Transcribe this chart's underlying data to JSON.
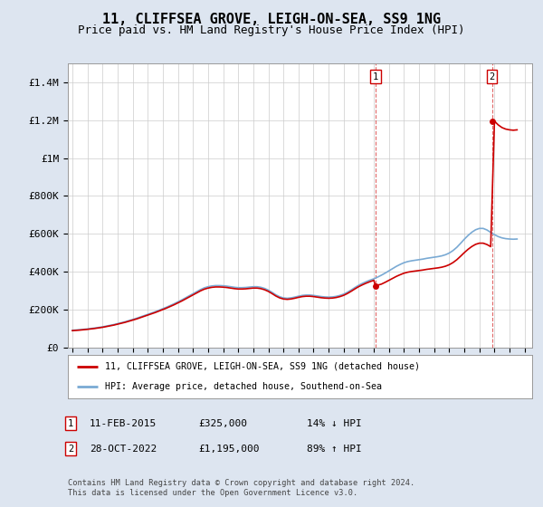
{
  "title": "11, CLIFFSEA GROVE, LEIGH-ON-SEA, SS9 1NG",
  "subtitle": "Price paid vs. HM Land Registry's House Price Index (HPI)",
  "title_fontsize": 11,
  "subtitle_fontsize": 9,
  "ylabel_ticks": [
    "£0",
    "£200K",
    "£400K",
    "£600K",
    "£800K",
    "£1M",
    "£1.2M",
    "£1.4M"
  ],
  "ytick_values": [
    0,
    200000,
    400000,
    600000,
    800000,
    1000000,
    1200000,
    1400000
  ],
  "ylim": [
    0,
    1500000
  ],
  "xlim_start": 1994.7,
  "xlim_end": 2025.5,
  "xticks": [
    1995,
    1996,
    1997,
    1998,
    1999,
    2000,
    2001,
    2002,
    2003,
    2004,
    2005,
    2006,
    2007,
    2008,
    2009,
    2010,
    2011,
    2012,
    2013,
    2014,
    2015,
    2016,
    2017,
    2018,
    2019,
    2020,
    2021,
    2022,
    2023,
    2024,
    2025
  ],
  "hpi_color": "#7aaad4",
  "price_color": "#cc0000",
  "background_color": "#dde5f0",
  "plot_bg_color": "#ffffff",
  "grid_color": "#cccccc",
  "sale1_x": 2015.1,
  "sale1_y": 325000,
  "sale2_x": 2022.83,
  "sale2_y": 1195000,
  "legend_line1": "11, CLIFFSEA GROVE, LEIGH-ON-SEA, SS9 1NG (detached house)",
  "legend_line2": "HPI: Average price, detached house, Southend-on-Sea",
  "footer": "Contains HM Land Registry data © Crown copyright and database right 2024.\nThis data is licensed under the Open Government Licence v3.0.",
  "hpi_x": [
    1995.0,
    1995.25,
    1995.5,
    1995.75,
    1996.0,
    1996.25,
    1996.5,
    1996.75,
    1997.0,
    1997.25,
    1997.5,
    1997.75,
    1998.0,
    1998.25,
    1998.5,
    1998.75,
    1999.0,
    1999.25,
    1999.5,
    1999.75,
    2000.0,
    2000.25,
    2000.5,
    2000.75,
    2001.0,
    2001.25,
    2001.5,
    2001.75,
    2002.0,
    2002.25,
    2002.5,
    2002.75,
    2003.0,
    2003.25,
    2003.5,
    2003.75,
    2004.0,
    2004.25,
    2004.5,
    2004.75,
    2005.0,
    2005.25,
    2005.5,
    2005.75,
    2006.0,
    2006.25,
    2006.5,
    2006.75,
    2007.0,
    2007.25,
    2007.5,
    2007.75,
    2008.0,
    2008.25,
    2008.5,
    2008.75,
    2009.0,
    2009.25,
    2009.5,
    2009.75,
    2010.0,
    2010.25,
    2010.5,
    2010.75,
    2011.0,
    2011.25,
    2011.5,
    2011.75,
    2012.0,
    2012.25,
    2012.5,
    2012.75,
    2013.0,
    2013.25,
    2013.5,
    2013.75,
    2014.0,
    2014.25,
    2014.5,
    2014.75,
    2015.0,
    2015.25,
    2015.5,
    2015.75,
    2016.0,
    2016.25,
    2016.5,
    2016.75,
    2017.0,
    2017.25,
    2017.5,
    2017.75,
    2018.0,
    2018.25,
    2018.5,
    2018.75,
    2019.0,
    2019.25,
    2019.5,
    2019.75,
    2020.0,
    2020.25,
    2020.5,
    2020.75,
    2021.0,
    2021.25,
    2021.5,
    2021.75,
    2022.0,
    2022.25,
    2022.5,
    2022.75,
    2023.0,
    2023.25,
    2023.5,
    2023.75,
    2024.0,
    2024.25,
    2024.5
  ],
  "hpi_y": [
    90000,
    91500,
    93000,
    95000,
    97000,
    99500,
    102000,
    105000,
    108000,
    112000,
    116000,
    120000,
    125000,
    130000,
    135000,
    141000,
    147000,
    153000,
    160000,
    167000,
    174000,
    181000,
    188000,
    196000,
    204000,
    212000,
    221000,
    230000,
    240000,
    250000,
    261000,
    272000,
    283000,
    294000,
    305000,
    314000,
    320000,
    324000,
    326000,
    326000,
    325000,
    323000,
    320000,
    317000,
    315000,
    315000,
    316000,
    318000,
    320000,
    320000,
    317000,
    311000,
    302000,
    290000,
    277000,
    267000,
    261000,
    259000,
    261000,
    265000,
    270000,
    274000,
    276000,
    276000,
    274000,
    271000,
    268000,
    266000,
    265000,
    266000,
    269000,
    274000,
    281000,
    291000,
    303000,
    316000,
    328000,
    338000,
    347000,
    355000,
    362000,
    371000,
    381000,
    392000,
    404000,
    416000,
    428000,
    438000,
    447000,
    453000,
    457000,
    460000,
    463000,
    466000,
    470000,
    473000,
    476000,
    479000,
    483000,
    489000,
    498000,
    511000,
    528000,
    549000,
    571000,
    591000,
    608000,
    621000,
    628000,
    628000,
    620000,
    607000,
    595000,
    585000,
    578000,
    574000,
    572000,
    571000,
    572000
  ],
  "price_y_initial": 88000,
  "price_initial_x": 1995.0
}
